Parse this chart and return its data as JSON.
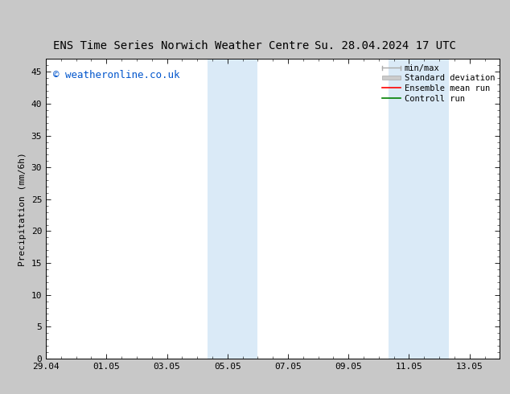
{
  "title_left": "ENS Time Series Norwich Weather Centre",
  "title_right": "Su. 28.04.2024 17 UTC",
  "ylabel": "Precipitation (mm/6h)",
  "xlabel": "",
  "ylim": [
    0,
    47
  ],
  "yticks": [
    0,
    5,
    10,
    15,
    20,
    25,
    30,
    35,
    40,
    45
  ],
  "xtick_labels": [
    "29.04",
    "01.05",
    "03.05",
    "05.05",
    "07.05",
    "09.05",
    "11.05",
    "13.05"
  ],
  "xtick_positions": [
    0,
    2,
    4,
    6,
    8,
    10,
    12,
    14
  ],
  "xlim": [
    0,
    15
  ],
  "shaded_bands": [
    {
      "x_start": 5.33,
      "x_end": 7.0
    },
    {
      "x_start": 11.33,
      "x_end": 13.33
    }
  ],
  "shaded_color": "#daeaf7",
  "background_color": "#ffffff",
  "fig_bg_color": "#c8c8c8",
  "watermark_text": "© weatheronline.co.uk",
  "watermark_color": "#0055cc",
  "legend_entries": [
    {
      "label": "min/max",
      "color": "#aaaaaa",
      "lw": 1.2
    },
    {
      "label": "Standard deviation",
      "color": "#cccccc",
      "lw": 6
    },
    {
      "label": "Ensemble mean run",
      "color": "#ff0000",
      "lw": 1.2
    },
    {
      "label": "Controll run",
      "color": "#008000",
      "lw": 1.2
    }
  ],
  "title_fontsize": 10,
  "axis_label_fontsize": 8,
  "tick_fontsize": 8,
  "legend_fontsize": 7.5,
  "watermark_fontsize": 9
}
